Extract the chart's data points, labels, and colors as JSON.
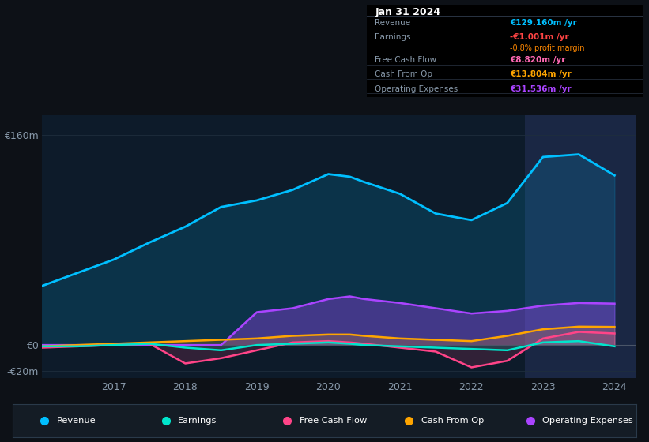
{
  "bg_color": "#0d1117",
  "plot_bg_color": "#0d1b2a",
  "plot_bg_highlight": "#1a2744",
  "grid_color": "#1e2d3d",
  "zero_line_color": "#4a5568",
  "title_date": "Jan 31 2024",
  "info_label_color": "#8899aa",
  "info_rows": [
    {
      "label": "Revenue",
      "value": "€129.160m /yr",
      "value_color": "#00bfff",
      "sub": null
    },
    {
      "label": "Earnings",
      "value": "-€1.001m /yr",
      "value_color": "#ff4444",
      "sub": "-0.8% profit margin",
      "sub_color": "#ff8800"
    },
    {
      "label": "Free Cash Flow",
      "value": "€8.820m /yr",
      "value_color": "#ff69b4",
      "sub": null
    },
    {
      "label": "Cash From Op",
      "value": "€13.804m /yr",
      "value_color": "#ffa500",
      "sub": null
    },
    {
      "label": "Operating Expenses",
      "value": "€31.536m /yr",
      "value_color": "#aa44ff",
      "sub": null
    }
  ],
  "years": [
    2016.0,
    2016.5,
    2017.0,
    2017.5,
    2018.0,
    2018.5,
    2019.0,
    2019.5,
    2020.0,
    2020.3,
    2020.5,
    2021.0,
    2021.5,
    2022.0,
    2022.5,
    2023.0,
    2023.5,
    2024.0
  ],
  "revenue": [
    45,
    55,
    65,
    78,
    90,
    105,
    110,
    118,
    130,
    128,
    124,
    115,
    100,
    95,
    108,
    143,
    145,
    129
  ],
  "earnings": [
    -1,
    -1,
    0,
    1,
    -2,
    -4,
    0,
    1,
    2,
    1,
    0,
    -1,
    -2,
    -3,
    -4,
    2,
    3,
    -1
  ],
  "free_cash_flow": [
    -2,
    -1,
    0,
    1,
    -14,
    -10,
    -4,
    2,
    3,
    2,
    1,
    -2,
    -5,
    -17,
    -12,
    5,
    10,
    8.8
  ],
  "cash_from_op": [
    -1,
    0,
    1,
    2,
    3,
    4,
    5,
    7,
    8,
    8,
    7,
    5,
    4,
    3,
    7,
    12,
    14,
    13.8
  ],
  "op_expenses": [
    0,
    0,
    0,
    0,
    0,
    0,
    25,
    28,
    35,
    37,
    35,
    32,
    28,
    24,
    26,
    30,
    32,
    31.5
  ],
  "ylim": [
    -25,
    175
  ],
  "yticks": [
    -20,
    0,
    160
  ],
  "ytick_labels": [
    "-€20m",
    "€0",
    "€160m"
  ],
  "xlim": [
    2016.0,
    2024.3
  ],
  "xticks": [
    2017,
    2018,
    2019,
    2020,
    2021,
    2022,
    2023,
    2024
  ],
  "revenue_color": "#00bfff",
  "earnings_color": "#00e5cc",
  "fcf_color": "#ff4488",
  "cfo_color": "#ffa500",
  "opex_color": "#aa44ff",
  "legend_bg": "#141c25",
  "legend_border": "#2a3a4a",
  "legend_labels": [
    "Revenue",
    "Earnings",
    "Free Cash Flow",
    "Cash From Op",
    "Operating Expenses"
  ]
}
